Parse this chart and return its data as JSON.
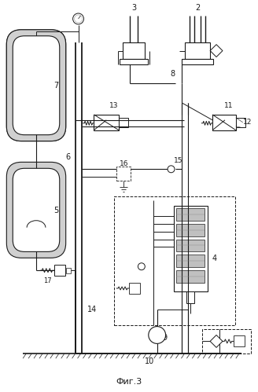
{
  "title": "Фиг.3",
  "bg_color": "#ffffff",
  "lc": "#1a1a1a",
  "fig_width": 3.28,
  "fig_height": 4.99,
  "dpi": 100
}
